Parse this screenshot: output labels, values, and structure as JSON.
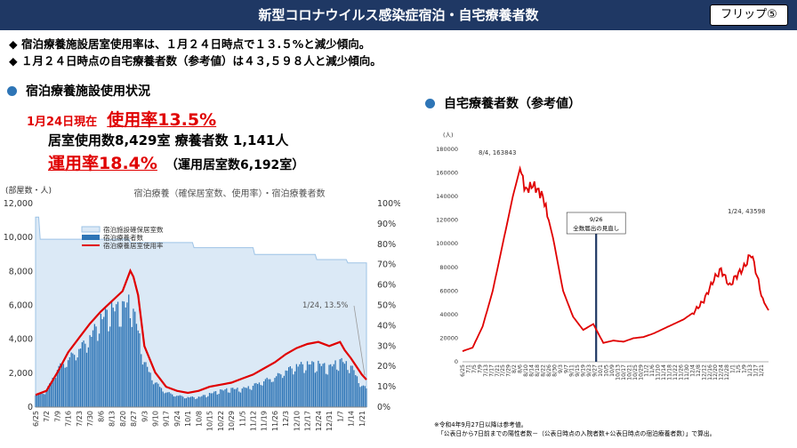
{
  "header": {
    "title": "新型コロナウイルス感染症宿泊・自宅療養者数",
    "flip_label": "フリップ⑤"
  },
  "bullets": [
    "◆ 宿泊療養施設居室使用率は、１月２４日時点で１３.５%と減少傾向。",
    "◆ １月２４日時点の自宅療養者数（参考値）は４３,５９８人と減少傾向。"
  ],
  "left_section": {
    "title": "宿泊療養施設使用状況",
    "date_label": "1月24日現在",
    "usage_rate": "使用率13.5%",
    "rooms_line": "居室使用数8,429室 療養者数 1,141人",
    "op_rate": "運用率18.4%",
    "op_rooms": "（運用居室数6,192室）"
  },
  "right_section": {
    "title": "自宅療養者数（参考値）"
  },
  "colors": {
    "header_bg": "#1f3864",
    "bullet_blue": "#2e75b6",
    "red": "#e00000",
    "bar_blue": "#2e75b6",
    "area_fill": "#dbe9f6"
  },
  "chart_data": [
    {
      "type": "bar",
      "title": "宿泊療養（確保居室数、使用率）・宿泊療養者数",
      "ylabel": "(部屋数・人)",
      "ylim": [
        0,
        12000
      ],
      "y2lim": [
        0,
        100
      ],
      "yticks": [
        "0",
        "2,000",
        "4,000",
        "6,000",
        "8,000",
        "10,000",
        "12,000"
      ],
      "y2ticks": [
        "0%",
        "10%",
        "20%",
        "30%",
        "40%",
        "50%",
        "60%",
        "70%",
        "80%",
        "90%",
        "100%"
      ],
      "xticks": [
        "6/25",
        "7/2",
        "7/9",
        "7/16",
        "7/23",
        "7/30",
        "8/6",
        "8/13",
        "8/20",
        "8/27",
        "9/3",
        "9/10",
        "9/17",
        "9/24",
        "10/1",
        "10/8",
        "10/15",
        "10/22",
        "10/29",
        "11/5",
        "11/12",
        "11/19",
        "11/26",
        "12/3",
        "12/10",
        "12/17",
        "12/24",
        "12/31",
        "1/7",
        "1/14",
        "1/21"
      ],
      "legend": [
        "宿泊施設確保居室数",
        "宿泊療養者数",
        "宿泊療養居室使用率"
      ],
      "annotation": "1/24, 13.5%",
      "series": [
        {
          "name": "宿泊施設確保居室数",
          "type": "area",
          "points": [
            [
              0,
              11200
            ],
            [
              2,
              11200
            ],
            [
              3,
              9900
            ],
            [
              60,
              9900
            ],
            [
              61,
              9700
            ],
            [
              101,
              9700
            ],
            [
              102,
              9400
            ],
            [
              140,
              9400
            ],
            [
              141,
              9000
            ],
            [
              180,
              9000
            ],
            [
              181,
              8700
            ],
            [
              200,
              8700
            ],
            [
              201,
              8500
            ],
            [
              213,
              8500
            ]
          ]
        },
        {
          "name": "宿泊療養者数",
          "type": "bar",
          "points": [
            [
              0,
              700
            ],
            [
              7,
              1000
            ],
            [
              14,
              2300
            ],
            [
              21,
              2900
            ],
            [
              28,
              3500
            ],
            [
              35,
              4200
            ],
            [
              42,
              5300
            ],
            [
              49,
              5900
            ],
            [
              56,
              6000
            ],
            [
              61,
              6400
            ],
            [
              66,
              4700
            ],
            [
              70,
              2700
            ],
            [
              77,
              1500
            ],
            [
              84,
              900
            ],
            [
              91,
              700
            ],
            [
              98,
              600
            ],
            [
              105,
              600
            ],
            [
              112,
              800
            ],
            [
              119,
              1000
            ],
            [
              126,
              1100
            ],
            [
              133,
              1100
            ],
            [
              140,
              1300
            ],
            [
              147,
              1600
            ],
            [
              154,
              1800
            ],
            [
              161,
              2200
            ],
            [
              168,
              2500
            ],
            [
              175,
              2600
            ],
            [
              182,
              2600
            ],
            [
              189,
              2400
            ],
            [
              196,
              2800
            ],
            [
              203,
              2500
            ],
            [
              210,
              1300
            ],
            [
              213,
              1141
            ]
          ]
        },
        {
          "name": "宿泊療養居室使用率",
          "type": "line",
          "axis": "right",
          "points": [
            [
              0,
              6
            ],
            [
              7,
              8
            ],
            [
              14,
              17
            ],
            [
              21,
              27
            ],
            [
              28,
              34
            ],
            [
              35,
              41
            ],
            [
              42,
              47
            ],
            [
              49,
              52
            ],
            [
              56,
              57
            ],
            [
              61,
              67
            ],
            [
              63,
              64
            ],
            [
              66,
              55
            ],
            [
              70,
              30
            ],
            [
              77,
              17
            ],
            [
              84,
              10
            ],
            [
              91,
              8
            ],
            [
              98,
              7
            ],
            [
              105,
              8
            ],
            [
              112,
              10
            ],
            [
              119,
              11
            ],
            [
              126,
              12
            ],
            [
              133,
              14
            ],
            [
              140,
              16
            ],
            [
              147,
              19
            ],
            [
              154,
              22
            ],
            [
              161,
              26
            ],
            [
              168,
              29
            ],
            [
              175,
              31
            ],
            [
              182,
              32
            ],
            [
              189,
              30
            ],
            [
              196,
              32
            ],
            [
              199,
              28
            ],
            [
              203,
              24
            ],
            [
              210,
              16
            ],
            [
              213,
              13.5
            ]
          ]
        }
      ]
    },
    {
      "type": "line",
      "title": "自宅療養者数（参考値）",
      "ylabel": "(人)",
      "ylim": [
        0,
        180000
      ],
      "yticks": [
        "0",
        "20000",
        "40000",
        "60000",
        "80000",
        "100000",
        "120000",
        "140000",
        "160000",
        "180000"
      ],
      "xticks": [
        "6/25",
        "7/1",
        "7/5",
        "7/9",
        "7/13",
        "7/17",
        "7/21",
        "7/25",
        "7/29",
        "8/2",
        "8/6",
        "8/10",
        "8/14",
        "8/18",
        "8/22",
        "8/26",
        "8/30",
        "9/3",
        "9/7",
        "9/11",
        "9/15",
        "9/19",
        "9/23",
        "9/27",
        "10/1",
        "10/5",
        "10/9",
        "10/13",
        "10/17",
        "10/21",
        "10/25",
        "10/29",
        "11/2",
        "11/6",
        "11/10",
        "11/14",
        "11/18",
        "11/22",
        "11/26",
        "11/30",
        "12/4",
        "12/8",
        "12/12",
        "12/16",
        "12/20",
        "12/24",
        "12/28",
        "1/1",
        "1/5",
        "1/9",
        "1/13",
        "1/17",
        "1/21"
      ],
      "annotations": [
        {
          "text": "8/4, 163843"
        },
        {
          "text": "9/26"
        },
        {
          "text": "全数届出の見直し"
        },
        {
          "text": "1/24, 43598"
        }
      ],
      "vline_label": "9/26",
      "series": [
        {
          "name": "自宅療養者数",
          "values": [
            [
              0,
              9000
            ],
            [
              7,
              12000
            ],
            [
              14,
              30000
            ],
            [
              21,
              60000
            ],
            [
              28,
              100000
            ],
            [
              35,
              140000
            ],
            [
              40,
              163843
            ],
            [
              44,
              145000
            ],
            [
              49,
              150000
            ],
            [
              56,
              140000
            ],
            [
              63,
              105000
            ],
            [
              70,
              60000
            ],
            [
              77,
              38000
            ],
            [
              84,
              27000
            ],
            [
              91,
              32000
            ],
            [
              98,
              16000
            ],
            [
              105,
              18000
            ],
            [
              112,
              17000
            ],
            [
              119,
              20000
            ],
            [
              126,
              21000
            ],
            [
              133,
              24000
            ],
            [
              140,
              28000
            ],
            [
              147,
              32000
            ],
            [
              154,
              36000
            ],
            [
              161,
              42000
            ],
            [
              168,
              52000
            ],
            [
              175,
              70000
            ],
            [
              180,
              78000
            ],
            [
              186,
              64000
            ],
            [
              190,
              72000
            ],
            [
              196,
              80000
            ],
            [
              201,
              92000
            ],
            [
              204,
              78000
            ],
            [
              209,
              52000
            ],
            [
              213,
              43598
            ]
          ]
        }
      ]
    }
  ],
  "footnotes": [
    "※令和4年9月27日以降は参考値。",
    "「公表日から7日前までの陽性者数－（公表日時点の入院者数+公表日時点の宿泊療養者数）」で算出。"
  ]
}
